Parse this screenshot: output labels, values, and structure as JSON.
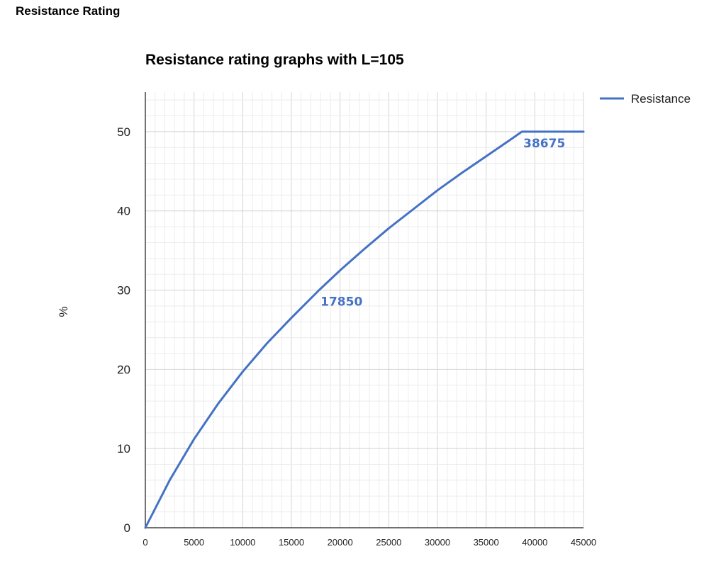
{
  "page": {
    "heading": "Resistance Rating"
  },
  "colors": {
    "series": "#4472c4",
    "grid_major": "#d4d4d4",
    "grid_minor": "#ececec",
    "axis": "#444444"
  },
  "chart_data": {
    "type": "line",
    "title": "Resistance rating graphs with L=105",
    "xlabel": "",
    "ylabel": "%",
    "xlim": [
      0,
      45000
    ],
    "ylim": [
      0,
      55
    ],
    "x_ticks": [
      0,
      5000,
      10000,
      15000,
      20000,
      25000,
      30000,
      35000,
      40000,
      45000
    ],
    "y_ticks": [
      0,
      10,
      20,
      30,
      40,
      50
    ],
    "grid": true,
    "legend_position": "top-right",
    "series": [
      {
        "name": "Resistance",
        "color": "#4472c4",
        "x": [
          0,
          2500,
          5000,
          7500,
          10000,
          12500,
          15000,
          17850,
          20000,
          22500,
          25000,
          27500,
          30000,
          32500,
          35000,
          37500,
          38675,
          45000
        ],
        "y": [
          0,
          6.0,
          11.2,
          15.7,
          19.7,
          23.3,
          26.5,
          30.0,
          32.5,
          35.2,
          37.8,
          40.2,
          42.6,
          44.8,
          46.9,
          49.0,
          50,
          50
        ]
      }
    ],
    "annotations": [
      {
        "text": "17850",
        "x": 17850,
        "y": 30
      },
      {
        "text": "38675",
        "x": 38675,
        "y": 50
      }
    ]
  }
}
